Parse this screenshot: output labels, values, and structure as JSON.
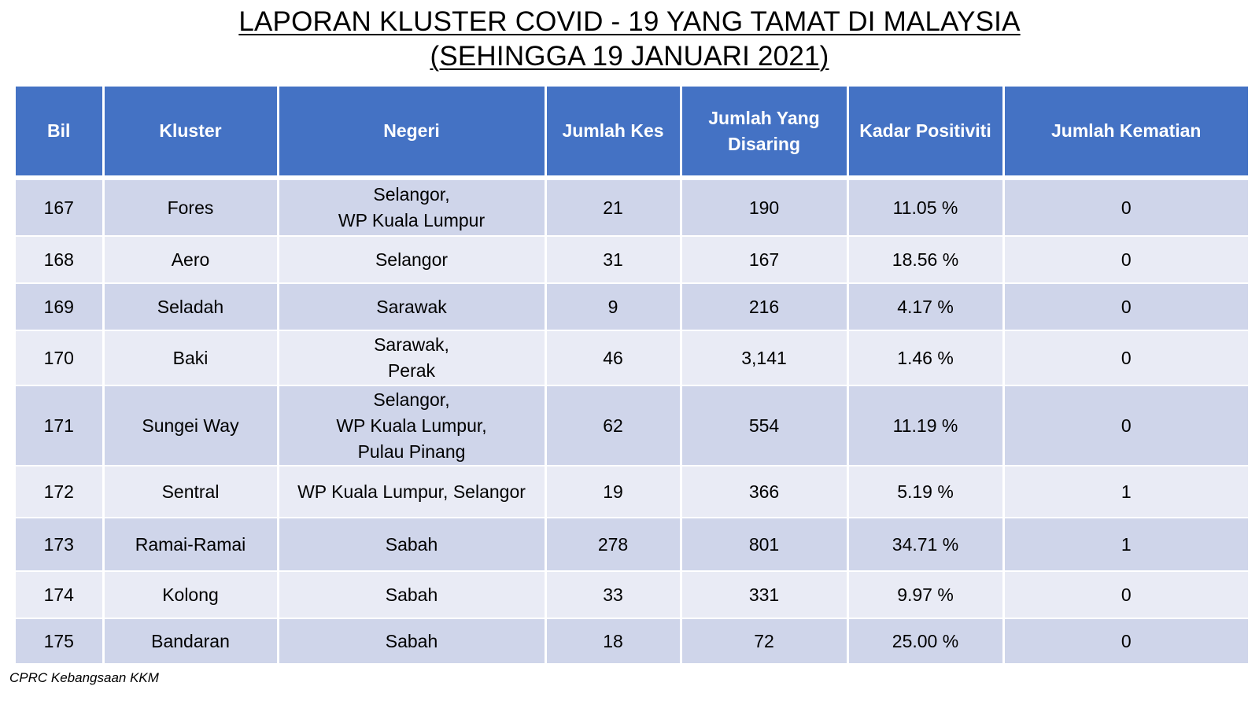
{
  "title": {
    "line1": "LAPORAN KLUSTER COVID - 19 YANG TAMAT DI MALAYSIA",
    "line2": "(SEHINGGA 19 JANUARI 2021)"
  },
  "table": {
    "headers": {
      "bil": "Bil",
      "kluster": "Kluster",
      "negeri": "Negeri",
      "jumlah_kes": "Jumlah Kes",
      "jumlah_disaring_1": "Jumlah Yang",
      "jumlah_disaring_2": "Disaring",
      "kadar_positiviti": "Kadar Positiviti",
      "jumlah_kematian": "Jumlah Kematian"
    },
    "rows": [
      {
        "bil": "167",
        "kluster": "Fores",
        "negeri": [
          "Selangor,",
          "WP Kuala Lumpur"
        ],
        "jumlah_kes": "21",
        "jumlah_disaring": "190",
        "kadar_positiviti": "11.05 %",
        "jumlah_kematian": "0"
      },
      {
        "bil": "168",
        "kluster": "Aero",
        "negeri": [
          "Selangor"
        ],
        "jumlah_kes": "31",
        "jumlah_disaring": "167",
        "kadar_positiviti": "18.56 %",
        "jumlah_kematian": "0"
      },
      {
        "bil": "169",
        "kluster": "Seladah",
        "negeri": [
          "Sarawak"
        ],
        "jumlah_kes": "9",
        "jumlah_disaring": "216",
        "kadar_positiviti": "4.17 %",
        "jumlah_kematian": "0"
      },
      {
        "bil": "170",
        "kluster": "Baki",
        "negeri": [
          "Sarawak,",
          "Perak"
        ],
        "jumlah_kes": "46",
        "jumlah_disaring": "3,141",
        "kadar_positiviti": "1.46 %",
        "jumlah_kematian": "0"
      },
      {
        "bil": "171",
        "kluster": "Sungei Way",
        "negeri": [
          "Selangor,",
          "WP Kuala Lumpur,",
          "Pulau Pinang"
        ],
        "jumlah_kes": "62",
        "jumlah_disaring": "554",
        "kadar_positiviti": "11.19 %",
        "jumlah_kematian": "0"
      },
      {
        "bil": "172",
        "kluster": "Sentral",
        "negeri": [
          "WP Kuala Lumpur, Selangor"
        ],
        "jumlah_kes": "19",
        "jumlah_disaring": "366",
        "kadar_positiviti": "5.19 %",
        "jumlah_kematian": "1"
      },
      {
        "bil": "173",
        "kluster": "Ramai-Ramai",
        "negeri": [
          "Sabah"
        ],
        "jumlah_kes": "278",
        "jumlah_disaring": "801",
        "kadar_positiviti": "34.71 %",
        "jumlah_kematian": "1"
      },
      {
        "bil": "174",
        "kluster": "Kolong",
        "negeri": [
          "Sabah"
        ],
        "jumlah_kes": "33",
        "jumlah_disaring": "331",
        "kadar_positiviti": "9.97 %",
        "jumlah_kematian": "0"
      },
      {
        "bil": "175",
        "kluster": "Bandaran",
        "negeri": [
          "Sabah"
        ],
        "jumlah_kes": "18",
        "jumlah_disaring": "72",
        "kadar_positiviti": "25.00 %",
        "jumlah_kematian": "0"
      }
    ]
  },
  "footer": {
    "source": "CPRC Kebangsaan KKM"
  },
  "colors": {
    "header_bg": "#4472c4",
    "row_odd_bg": "#cfd5ea",
    "row_even_bg": "#e9ebf5"
  }
}
